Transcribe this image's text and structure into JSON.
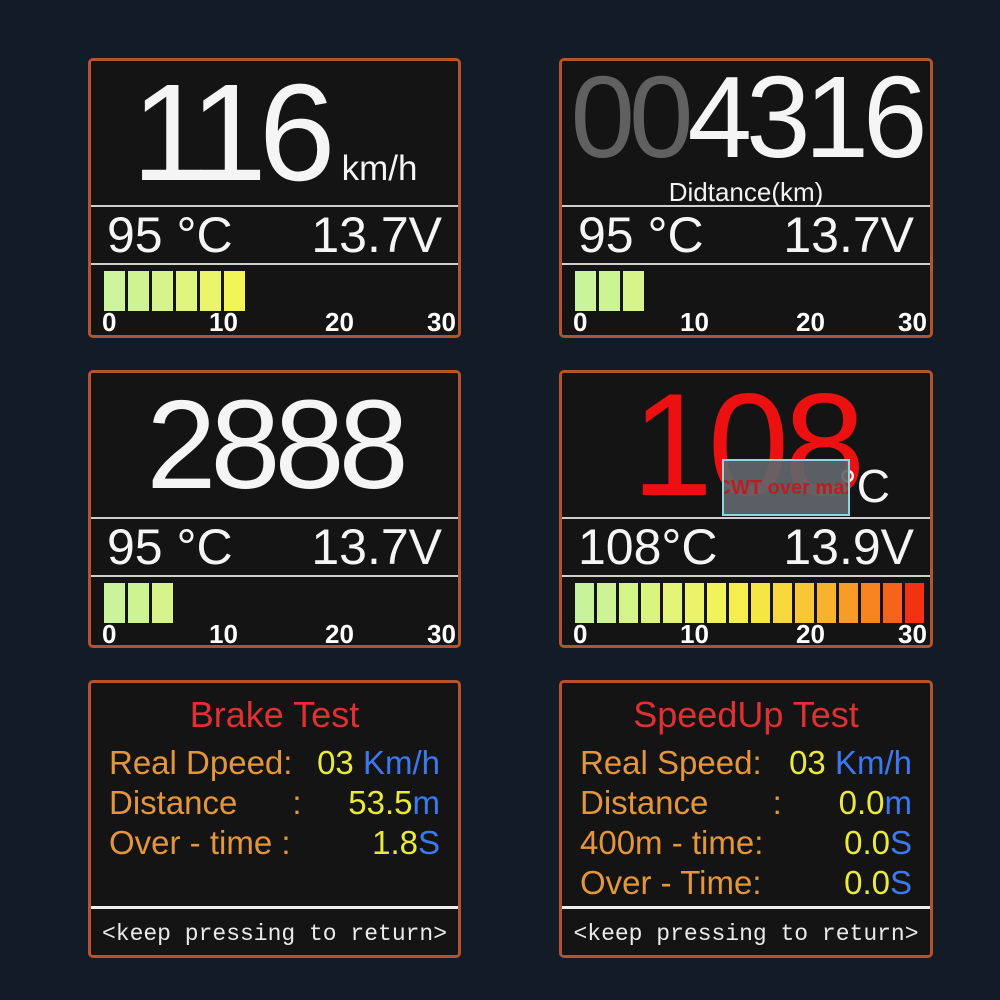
{
  "device": {
    "background_color": "#131c26",
    "panel_background": "#141414",
    "panel_border_color": "#b5532c",
    "separator_color": "#cfcfcf"
  },
  "colors": {
    "big_number_white": "#f5f5f5",
    "odometer_prefix_gray": "#606060",
    "alarm_red": "#ec1010",
    "warning_text_red": "#b32222",
    "warning_box_border_cyan": "#8fd6e0",
    "label_orange": "#e3963c",
    "value_yellow": "#e8ea3e",
    "unit_blue": "#3c79ef",
    "title_red": "#df3033"
  },
  "panels": {
    "speed": {
      "value": "116",
      "unit": "km/h",
      "temp": "95 °C",
      "voltage": "13.7V",
      "scale": [
        "0",
        "10",
        "20",
        "30"
      ],
      "bar_colors": [
        "#ccf49a",
        "#cff393",
        "#d7f48b",
        "#e0f57e",
        "#eaf56c",
        "#f3f458"
      ]
    },
    "odometer": {
      "prefix": "00",
      "value": "4316",
      "label": "Didtance(km)",
      "temp": "95 °C",
      "voltage": "13.7V",
      "scale": [
        "0",
        "10",
        "20",
        "30"
      ],
      "bar_colors": [
        "#c9f49a",
        "#cdf492",
        "#d6f48a"
      ]
    },
    "rpm": {
      "value": "2888",
      "temp": "95 °C",
      "voltage": "13.7V",
      "scale": [
        "0",
        "10",
        "20",
        "30"
      ],
      "bar_colors": [
        "#c9f49a",
        "#cdf492",
        "#d6f48a"
      ]
    },
    "coolant": {
      "value": "108",
      "unit": "°C",
      "warning": "CWT over max",
      "temp": "108°C",
      "voltage": "13.9V",
      "scale": [
        "0",
        "10",
        "20",
        "30"
      ],
      "bar_colors": [
        "#c9f39a",
        "#cdf392",
        "#d4f48a",
        "#dbf480",
        "#e3f476",
        "#ebf468",
        "#f1f35b",
        "#f5ee4e",
        "#f7e544",
        "#f8d83c",
        "#f9c735",
        "#f9b22e",
        "#f89c27",
        "#f78421",
        "#f5641a",
        "#f23210"
      ]
    },
    "brake_test": {
      "title": "Brake Test",
      "rows": [
        {
          "label": "Real Dpeed:",
          "value": "03",
          "unit": " Km/h"
        },
        {
          "label": "Distance      :",
          "value": "53.5",
          "unit": "m"
        },
        {
          "label": "Over - time :",
          "value": "1.8",
          "unit": "S"
        }
      ],
      "footer": "<keep pressing to return>"
    },
    "speedup_test": {
      "title": "SpeedUp Test",
      "rows": [
        {
          "label": "Real Speed:",
          "value": "03",
          "unit": " Km/h"
        },
        {
          "label": "Distance       :",
          "value": "0.0",
          "unit": "m"
        },
        {
          "label": "400m - time:",
          "value": "0.0",
          "unit": "S"
        },
        {
          "label": "Over - Time:",
          "value": "0.0",
          "unit": "S"
        }
      ],
      "footer": "<keep pressing to return>"
    }
  }
}
